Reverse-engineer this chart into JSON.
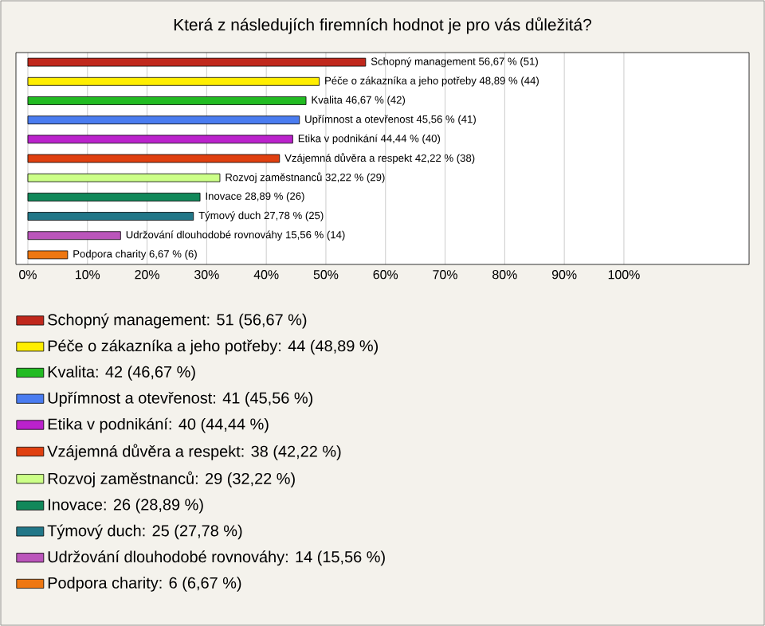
{
  "chart_data": {
    "type": "bar",
    "orientation": "horizontal",
    "stacked": true,
    "title": "Která z následujích firemních hodnot je pro vás důležitá?",
    "categories": [
      null,
      null,
      null,
      null,
      null,
      null,
      null,
      null,
      null,
      null,
      null
    ],
    "series": [
      {
        "name": "Schopný management: 51 (56,67 %)",
        "color": "#c0281c",
        "values": [
          56.67,
          null,
          null,
          null,
          null,
          null,
          null,
          null,
          null,
          null,
          null
        ],
        "value_labels": [
          "Schopný management 56,67 % (51)",
          null,
          null,
          null,
          null,
          null,
          null,
          null,
          null,
          null,
          null
        ]
      },
      {
        "name": "Péče o zákazníka a jeho potřeby: 44 (48,89 %)",
        "color": "#ffee00",
        "values": [
          null,
          48.89,
          null,
          null,
          null,
          null,
          null,
          null,
          null,
          null,
          null
        ],
        "value_labels": [
          null,
          "Péče o zákazníka a jeho potřeby 48,89 % (44)",
          null,
          null,
          null,
          null,
          null,
          null,
          null,
          null,
          null
        ]
      },
      {
        "name": "Kvalita: 42 (46,67 %)",
        "color": "#22bb22",
        "values": [
          null,
          null,
          46.67,
          null,
          null,
          null,
          null,
          null,
          null,
          null,
          null
        ],
        "value_labels": [
          null,
          null,
          "Kvalita 46,67 % (42)",
          null,
          null,
          null,
          null,
          null,
          null,
          null,
          null
        ]
      },
      {
        "name": "Upřímnost a otevřenost: 41 (45,56 %)",
        "color": "#4a7cf0",
        "values": [
          null,
          null,
          null,
          45.56,
          null,
          null,
          null,
          null,
          null,
          null,
          null
        ],
        "value_labels": [
          null,
          null,
          null,
          "Upřímnost a otevřenost 45,56 % (41)",
          null,
          null,
          null,
          null,
          null,
          null,
          null
        ]
      },
      {
        "name": "Etika v podnikání: 40 (44,44 %)",
        "color": "#bb22cc",
        "values": [
          null,
          null,
          null,
          null,
          44.44,
          null,
          null,
          null,
          null,
          null,
          null
        ],
        "value_labels": [
          null,
          null,
          null,
          null,
          "Etika v podnikání 44,44 % (40)",
          null,
          null,
          null,
          null,
          null,
          null
        ]
      },
      {
        "name": "Vzájemná důvěra a respekt: 38 (42,22 %)",
        "color": "#e04010",
        "values": [
          null,
          null,
          null,
          null,
          null,
          42.22,
          null,
          null,
          null,
          null,
          null
        ],
        "value_labels": [
          null,
          null,
          null,
          null,
          null,
          "Vzájemná důvěra a respekt 42,22 % (38)",
          null,
          null,
          null,
          null,
          null
        ]
      },
      {
        "name": "Rozvoj zaměstnanců: 29 (32,22 %)",
        "color": "#ccff88",
        "values": [
          null,
          null,
          null,
          null,
          null,
          null,
          32.22,
          null,
          null,
          null,
          null
        ],
        "value_labels": [
          null,
          null,
          null,
          null,
          null,
          null,
          "Rozvoj zaměstnanců 32,22 % (29)",
          null,
          null,
          null,
          null
        ]
      },
      {
        "name": "Inovace: 26 (28,89 %)",
        "color": "#11885a",
        "values": [
          null,
          null,
          null,
          null,
          null,
          null,
          null,
          28.89,
          null,
          null,
          null
        ],
        "value_labels": [
          null,
          null,
          null,
          null,
          null,
          null,
          null,
          "Inovace 28,89 % (26)",
          null,
          null,
          null
        ]
      },
      {
        "name": "Týmový duch: 25 (27,78 %)",
        "color": "#227788",
        "values": [
          null,
          null,
          null,
          null,
          null,
          null,
          null,
          null,
          27.78,
          null,
          null
        ],
        "value_labels": [
          null,
          null,
          null,
          null,
          null,
          null,
          null,
          null,
          "Týmový duch 27,78 % (25)",
          null,
          null
        ]
      },
      {
        "name": "Udržování dlouhodobé rovnováhy: 14 (15,56 %)",
        "color": "#bb55bb",
        "values": [
          null,
          null,
          null,
          null,
          null,
          null,
          null,
          null,
          null,
          15.56,
          null
        ],
        "value_labels": [
          null,
          null,
          null,
          null,
          null,
          null,
          null,
          null,
          null,
          "Udržování dlouhodobé rovnováhy 15,56 % (14)",
          null
        ]
      },
      {
        "name": "Podpora charity: 6 (6,67 %)",
        "color": "#ee7711",
        "values": [
          null,
          null,
          null,
          null,
          null,
          null,
          null,
          null,
          null,
          null,
          6.67
        ],
        "value_labels": [
          null,
          null,
          null,
          null,
          null,
          null,
          null,
          null,
          null,
          null,
          "Podpora charity 6,67 % (6)"
        ]
      }
    ],
    "xlim": [
      -2,
      121
    ],
    "xticks": [
      {
        "value": 0,
        "label": "0%"
      },
      {
        "value": 10,
        "label": "10%"
      },
      {
        "value": 20,
        "label": "20%"
      },
      {
        "value": 30,
        "label": "30%"
      },
      {
        "value": 40,
        "label": "40%"
      },
      {
        "value": 50,
        "label": "50%"
      },
      {
        "value": 60,
        "label": "60%"
      },
      {
        "value": 70,
        "label": "70%"
      },
      {
        "value": 80,
        "label": "80%"
      },
      {
        "value": 90,
        "label": "90%"
      },
      {
        "value": 100,
        "label": "100%"
      }
    ],
    "grid": "x",
    "legend": "bottom",
    "tick_labels": "x"
  }
}
